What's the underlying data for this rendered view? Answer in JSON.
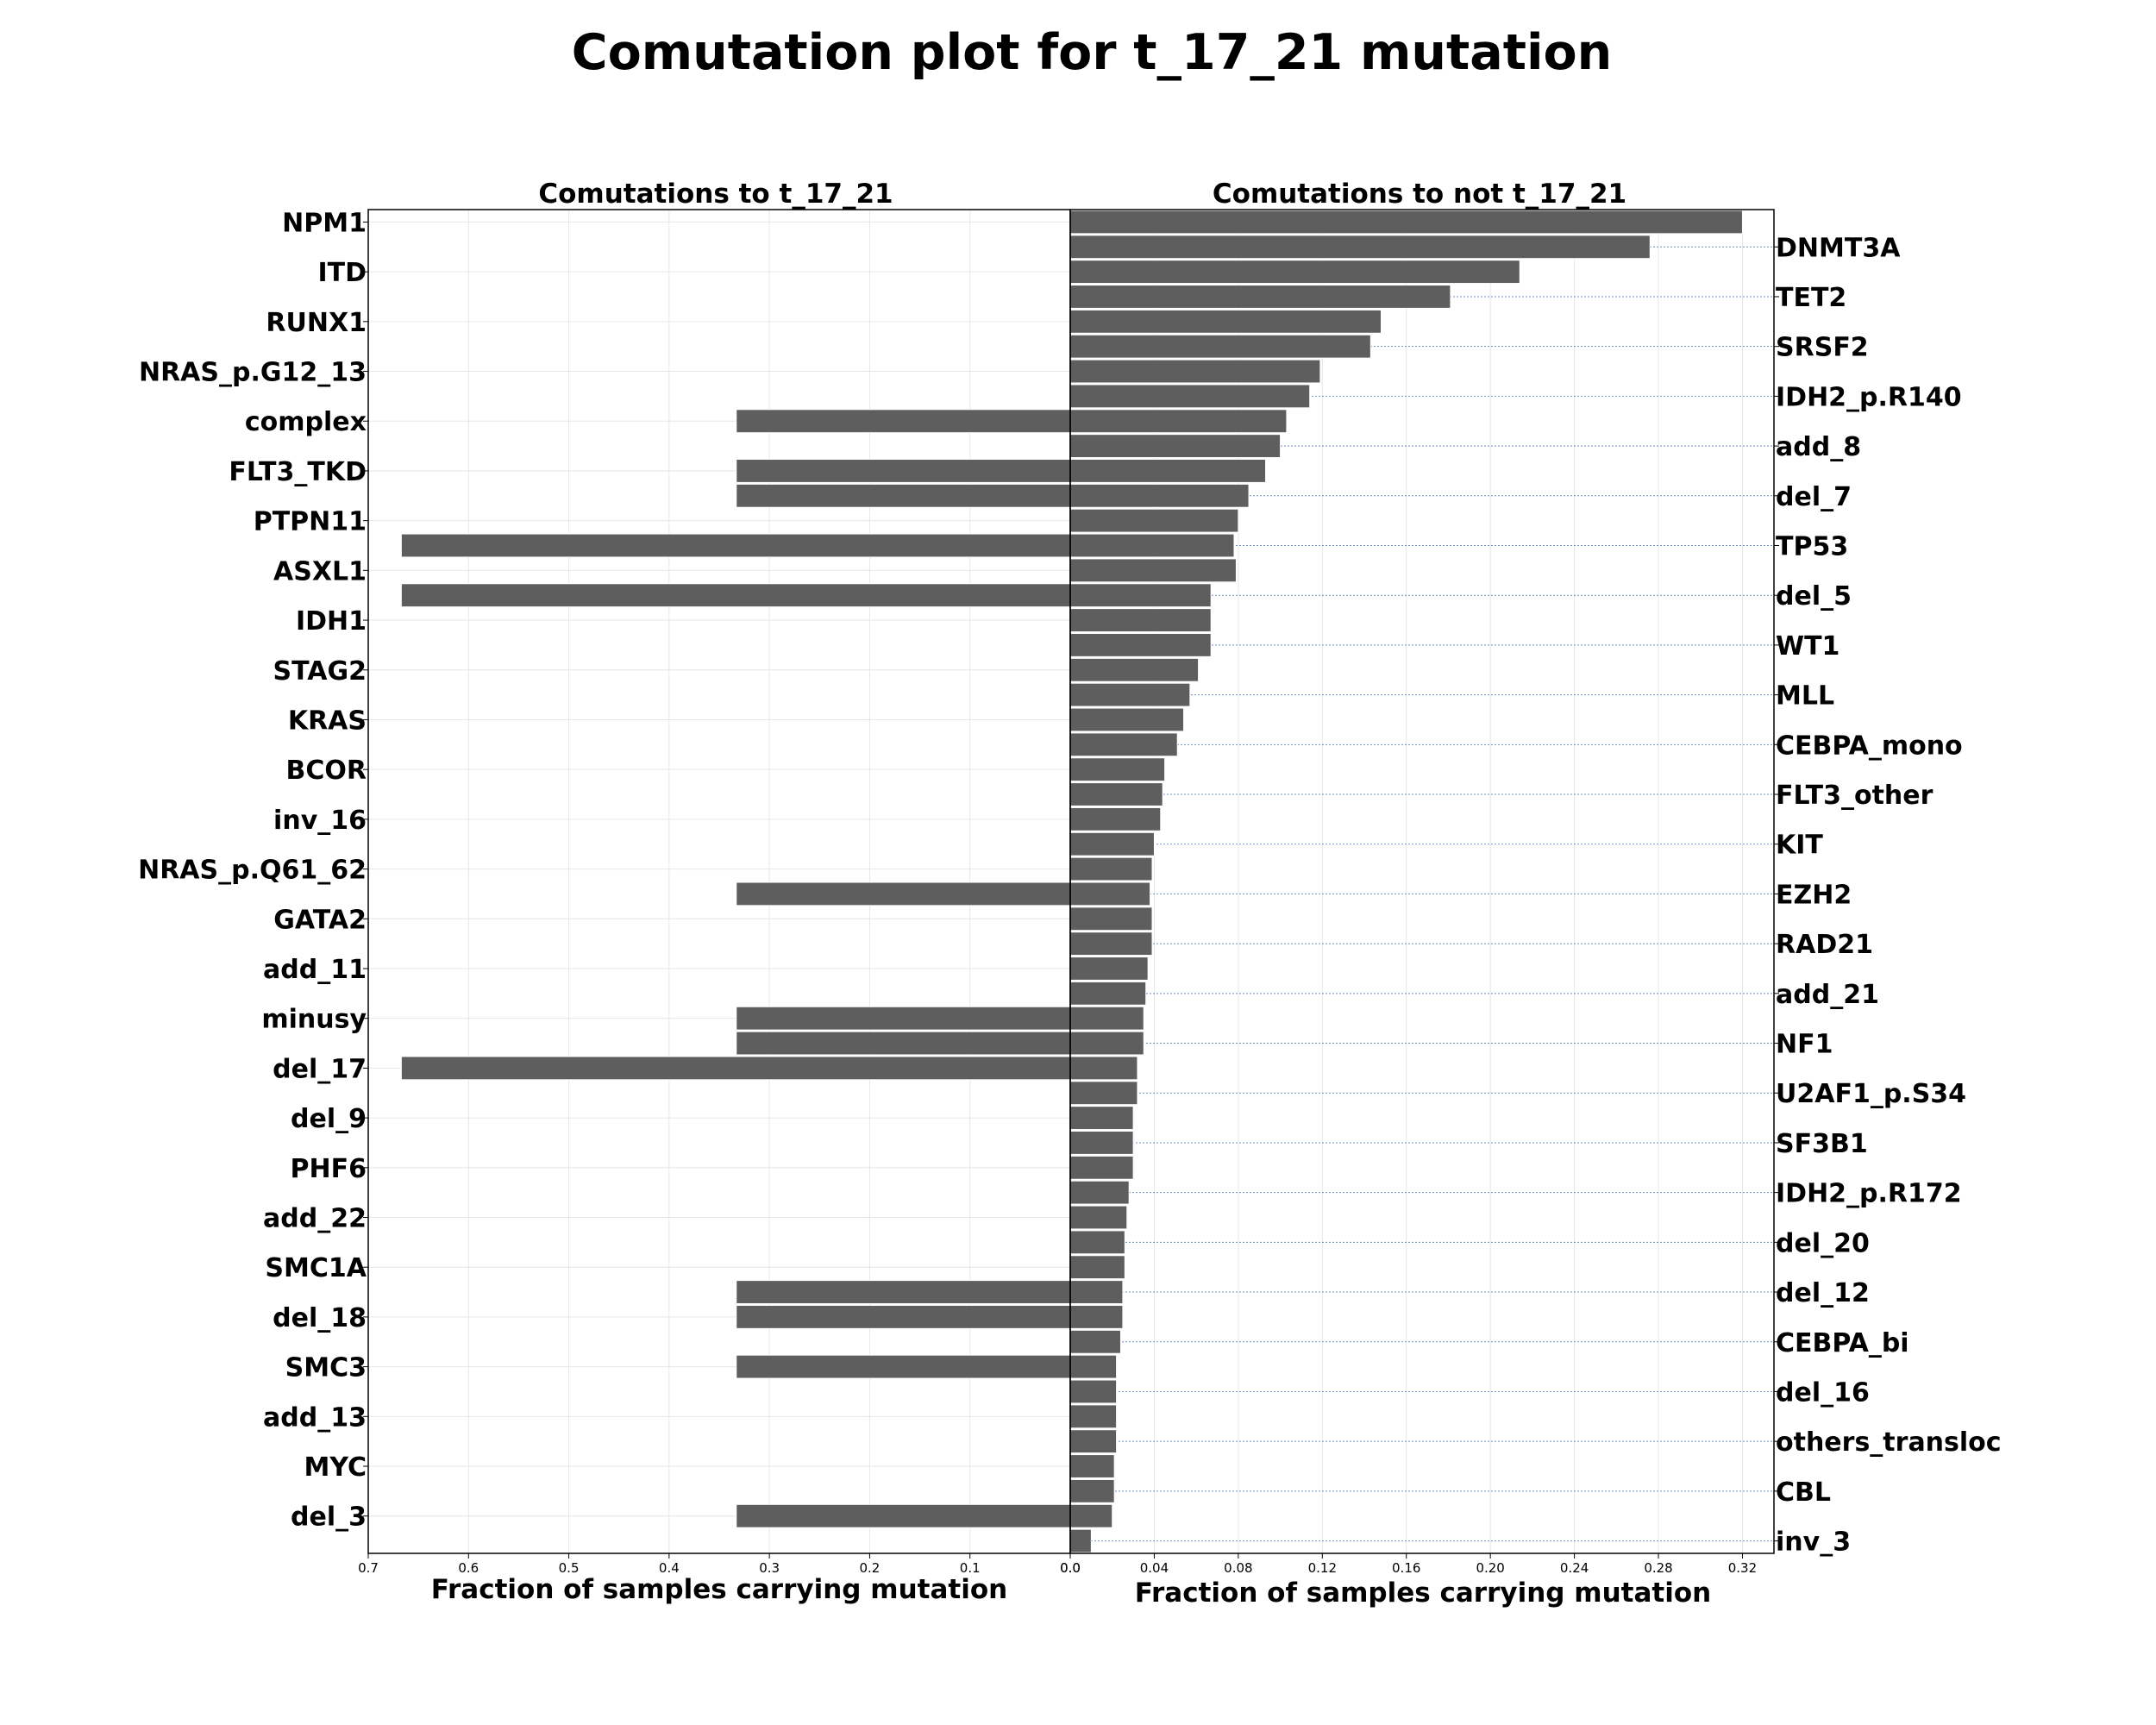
{
  "chart_data": {
    "type": "bar",
    "title": "Comutation plot for t_17_21 mutation",
    "categories": [
      "NPM1",
      "DNMT3A",
      "ITD",
      "TET2",
      "RUNX1",
      "SRSF2",
      "NRAS_p.G12_13",
      "IDH2_p.R140",
      "complex",
      "add_8",
      "FLT3_TKD",
      "del_7",
      "PTPN11",
      "TP53",
      "ASXL1",
      "del_5",
      "IDH1",
      "WT1",
      "STAG2",
      "MLL",
      "KRAS",
      "CEBPA_mono",
      "BCOR",
      "FLT3_other",
      "inv_16",
      "KIT",
      "NRAS_p.Q61_62",
      "EZH2",
      "GATA2",
      "RAD21",
      "add_11",
      "add_21",
      "minusy",
      "NF1",
      "del_17",
      "U2AF1_p.S34",
      "del_9",
      "SF3B1",
      "PHF6",
      "IDH2_p.R172",
      "add_22",
      "del_20",
      "SMC1A",
      "del_12",
      "del_18",
      "CEBPA_bi",
      "SMC3",
      "del_16",
      "add_13",
      "others_transloc",
      "MYC",
      "CBL",
      "del_3",
      "inv_3"
    ],
    "left_panel": {
      "title": "Comutations to t_17_21",
      "xlabel": "Fraction of samples carrying mutation",
      "xlim": [
        0.7,
        0.0
      ],
      "ticks": [
        "0.7",
        "0.6",
        "0.5",
        "0.4",
        "0.3",
        "0.2",
        "0.1",
        "0.0"
      ],
      "values": [
        0,
        0,
        0,
        0,
        0,
        0,
        0,
        0,
        0.333,
        0,
        0.333,
        0.333,
        0,
        0.667,
        0,
        0.667,
        0,
        0,
        0,
        0,
        0,
        0,
        0,
        0,
        0,
        0,
        0,
        0.333,
        0,
        0,
        0,
        0,
        0.333,
        0.333,
        0.667,
        0,
        0,
        0,
        0,
        0,
        0,
        0,
        0,
        0.333,
        0.333,
        0,
        0.333,
        0,
        0,
        0,
        0,
        0,
        0.333,
        0
      ]
    },
    "right_panel": {
      "title": "Comutations to not t_17_21",
      "xlabel": "Fraction of samples carrying mutation",
      "xlim": [
        0.0,
        0.335
      ],
      "ticks": [
        "0.0",
        "0.04",
        "0.08",
        "0.12",
        "0.16",
        "0.20",
        "0.24",
        "0.28",
        "0.32"
      ],
      "values": [
        0.32,
        0.276,
        0.214,
        0.181,
        0.148,
        0.143,
        0.119,
        0.114,
        0.103,
        0.1,
        0.093,
        0.085,
        0.08,
        0.078,
        0.079,
        0.067,
        0.067,
        0.067,
        0.061,
        0.057,
        0.054,
        0.051,
        0.045,
        0.044,
        0.043,
        0.04,
        0.039,
        0.038,
        0.039,
        0.039,
        0.037,
        0.036,
        0.035,
        0.035,
        0.032,
        0.032,
        0.03,
        0.03,
        0.03,
        0.028,
        0.027,
        0.026,
        0.026,
        0.025,
        0.025,
        0.024,
        0.022,
        0.022,
        0.022,
        0.022,
        0.021,
        0.021,
        0.02,
        0.01
      ]
    },
    "left_axis_labels": [
      "NPM1",
      "ITD",
      "RUNX1",
      "NRAS_p.G12_13",
      "complex",
      "FLT3_TKD",
      "PTPN11",
      "ASXL1",
      "IDH1",
      "STAG2",
      "KRAS",
      "BCOR",
      "inv_16",
      "NRAS_p.Q61_62",
      "GATA2",
      "add_11",
      "minusy",
      "del_17",
      "del_9",
      "PHF6",
      "add_22",
      "SMC1A",
      "del_18",
      "SMC3",
      "add_13",
      "MYC",
      "del_3"
    ],
    "right_axis_labels": [
      "DNMT3A",
      "TET2",
      "SRSF2",
      "IDH2_p.R140",
      "add_8",
      "del_7",
      "TP53",
      "del_5",
      "WT1",
      "MLL",
      "CEBPA_mono",
      "FLT3_other",
      "KIT",
      "EZH2",
      "RAD21",
      "add_21",
      "NF1",
      "U2AF1_p.S34",
      "SF3B1",
      "IDH2_p.R172",
      "del_20",
      "del_12",
      "CEBPA_bi",
      "del_16",
      "others_transloc",
      "CBL",
      "inv_3"
    ],
    "grid": true,
    "colors": {
      "bar": "#5e5e5e",
      "guide": "#6c8ebf",
      "grid": "#e6e6e6"
    }
  }
}
